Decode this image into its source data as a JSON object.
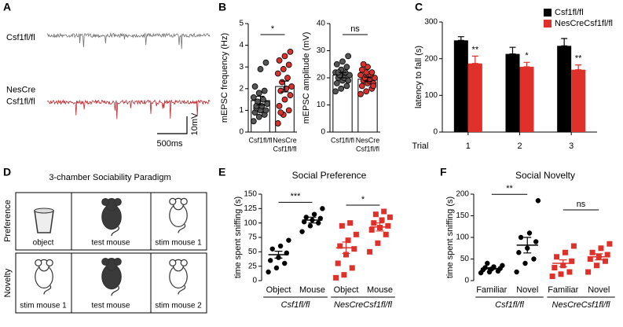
{
  "chart_data": [
    {
      "type": "trace",
      "panel_label": "A",
      "series": [
        {
          "name": [
            "Csf1fl/fl"
          ],
          "color": "#707070"
        },
        {
          "name": [
            "NesCre",
            "Csf1fl/fl"
          ],
          "color": "#c0262d"
        }
      ],
      "scale": {
        "y_label": "10mV",
        "x_label": "500ms"
      }
    },
    {
      "type": "dotbar",
      "panel_label": "B",
      "ylabel": "mEPSC frequency (Hz)",
      "ylim": [
        0,
        5
      ],
      "yticks": [
        0,
        1,
        2,
        3,
        4,
        5
      ],
      "categories": [
        [
          "Csf1fl/fl"
        ],
        [
          "NesCre",
          "Csf1fl/fl"
        ]
      ],
      "colors": [
        "#555555",
        "#d9302c"
      ],
      "values": [
        1.45,
        2.1
      ],
      "errors": [
        0.2,
        0.25
      ],
      "points": [
        [
          0.5,
          0.7,
          0.8,
          0.9,
          1.0,
          1.0,
          1.1,
          1.2,
          1.3,
          1.4,
          1.5,
          1.6,
          1.8,
          1.9,
          2.1,
          2.9,
          3.2,
          1.2
        ],
        [
          0.4,
          0.8,
          1.0,
          1.2,
          1.5,
          1.7,
          1.9,
          2.0,
          2.1,
          2.3,
          2.5,
          2.7,
          2.9,
          3.1,
          3.3,
          3.5,
          3.7,
          0.9
        ]
      ],
      "significance": "*"
    },
    {
      "type": "dotbar",
      "ylabel": "mEPSC amplitude (mV)",
      "ylim": [
        0,
        40
      ],
      "yticks": [
        0,
        10,
        20,
        30,
        40
      ],
      "categories": [
        [
          "Csf1fl/fl"
        ],
        [
          "NesCre",
          "Csf1fl/fl"
        ]
      ],
      "colors": [
        "#555555",
        "#d9302c"
      ],
      "values": [
        21,
        19.5
      ],
      "errors": [
        1,
        0.8
      ],
      "points": [
        [
          15,
          16,
          17,
          18,
          19,
          19,
          20,
          20,
          21,
          21,
          22,
          22,
          23,
          24,
          25,
          26,
          28,
          22
        ],
        [
          14,
          15,
          16,
          17,
          18,
          18,
          19,
          19,
          20,
          20,
          21,
          21,
          22,
          22,
          23,
          24,
          17,
          25
        ]
      ],
      "significance": "ns"
    },
    {
      "type": "bar",
      "panel_label": "C",
      "ylabel": "latency to fall (s)",
      "xlabel": "Trial",
      "categories": [
        "1",
        "2",
        "3"
      ],
      "ylim": [
        0,
        300
      ],
      "yticks": [
        0,
        100,
        200,
        300
      ],
      "legend": "upper right",
      "series": [
        {
          "name": "Csf1fl/fl",
          "color": "#000000",
          "values": [
            250,
            213,
            235
          ],
          "errors": [
            10,
            18,
            20
          ]
        },
        {
          "name": "NesCreCsf1fl/fl",
          "color": "#e0302a",
          "values": [
            187,
            178,
            170
          ],
          "errors": [
            20,
            12,
            13
          ],
          "significance": [
            "**",
            "*",
            "**"
          ]
        }
      ]
    },
    {
      "type": "dotpair",
      "panel_label": "E",
      "title": "Social Preference",
      "ylabel": "time spent sniffing (s)",
      "ylim": [
        0,
        150
      ],
      "yticks": [
        0,
        25,
        50,
        75,
        100,
        125,
        150
      ],
      "series": [
        {
          "name": "Csf1fl/fl",
          "color": "#000000",
          "marker": "circle",
          "categories": [
            "Object",
            "Mouse"
          ],
          "values": [
            45,
            105
          ],
          "errors": [
            6,
            5
          ],
          "points": [
            [
              15,
              22,
              30,
              35,
              40,
              48,
              55,
              60,
              70
            ],
            [
              85,
              95,
              100,
              102,
              105,
              108,
              110,
              115,
              125
            ]
          ],
          "significance": "***"
        },
        {
          "name": "NesCreCsf1fl/fl",
          "color": "#e0302a",
          "marker": "square",
          "categories": [
            "Object",
            "Mouse"
          ],
          "values": [
            57,
            93
          ],
          "errors": [
            10,
            7
          ],
          "points": [
            [
              5,
              10,
              22,
              30,
              45,
              55,
              60,
              70,
              80,
              95,
              100
            ],
            [
              50,
              65,
              80,
              88,
              92,
              95,
              100,
              105,
              110,
              115,
              120
            ]
          ],
          "significance": "*"
        }
      ]
    },
    {
      "type": "dotpair",
      "panel_label": "F",
      "title": "Social Novelty",
      "ylabel": "time spent sniffing (s)",
      "ylim": [
        0,
        200
      ],
      "yticks": [
        0,
        50,
        100,
        150,
        200
      ],
      "series": [
        {
          "name": "Csf1fl/fl",
          "color": "#000000",
          "marker": "circle",
          "categories": [
            "Familiar",
            "Novel"
          ],
          "values": [
            28,
            82
          ],
          "errors": [
            2,
            18
          ],
          "points": [
            [
              18,
              20,
              22,
              25,
              27,
              28,
              30,
              32,
              35,
              40
            ],
            [
              20,
              40,
              50,
              65,
              75,
              90,
              100,
              110,
              185
            ]
          ],
          "significance": "**"
        },
        {
          "name": "NesCreCsf1fl/fl",
          "color": "#e0302a",
          "marker": "square",
          "categories": [
            "Familiar",
            "Novel"
          ],
          "values": [
            40,
            55
          ],
          "errors": [
            8,
            7
          ],
          "points": [
            [
              10,
              15,
              20,
              30,
              35,
              45,
              55,
              65,
              80
            ],
            [
              20,
              35,
              45,
              50,
              55,
              60,
              65,
              75,
              85
            ]
          ],
          "significance": "ns"
        }
      ]
    }
  ],
  "diagram": {
    "panel_label": "D",
    "title": "3-chamber Sociability Paradigm",
    "rows": [
      {
        "name": "Preference",
        "cells": [
          "object",
          "test mouse",
          "stim mouse 1"
        ]
      },
      {
        "name": "Novelty",
        "cells": [
          "stim mouse 1",
          "test mouse",
          "stim mouse 2"
        ]
      }
    ]
  }
}
